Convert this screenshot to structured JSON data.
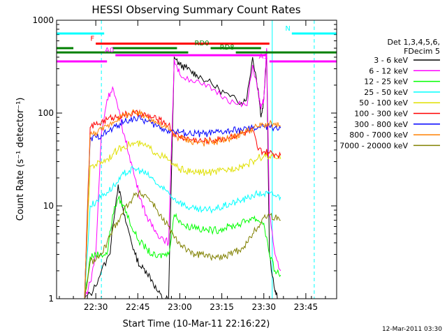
{
  "chart_data": {
    "type": "line",
    "title": "HESSI Observing Summary Count Rates",
    "xlabel": "Start Time (10-Mar-11 22:16:22)",
    "ylabel": "Count Rate (s⁻¹ detector⁻¹)",
    "y_log": true,
    "ylim": [
      1,
      1000
    ],
    "xlim_minutes": [
      0,
      100
    ],
    "x_tick_labels": [
      "22:30",
      "22:45",
      "23:00",
      "23:15",
      "23:30",
      "23:45"
    ],
    "x_tick_minutes": [
      14,
      29,
      44,
      59,
      74,
      89
    ],
    "y_tick_labels": [
      "1",
      "10",
      "100",
      "1000"
    ],
    "y_tick_values": [
      1,
      10,
      100,
      1000
    ],
    "grid": false,
    "legend": {
      "placement": "right",
      "header": [
        "Det 1,3,4,5,6,",
        "FDecim 5"
      ]
    },
    "footer_date": "12-Mar-2011 03:30",
    "flag_bars": [
      {
        "label": "N",
        "color": "#00ffff",
        "segments": [
          [
            0,
            17
          ],
          [
            84,
            100
          ]
        ],
        "level": 720
      },
      {
        "label": "F",
        "color": "#ff0000",
        "segments": [
          [
            14,
            76
          ]
        ],
        "level": 560
      },
      {
        "label": "RD0",
        "color": "#008000",
        "segments": [
          [
            0,
            6
          ],
          [
            20,
            43
          ],
          [
            55,
            73
          ]
        ],
        "level": 500
      },
      {
        "label": "RD8",
        "color": "#008000",
        "segments": [
          [
            0,
            47
          ],
          [
            64,
            100
          ]
        ],
        "level": 450
      },
      {
        "label": "A0",
        "color": "#ff00ff",
        "segments": [
          [
            21,
            75
          ]
        ],
        "level": 420
      },
      {
        "label": "A1",
        "color": "#ff00ff",
        "segments": [
          [
            0,
            18
          ],
          [
            76,
            100
          ]
        ],
        "level": 360
      }
    ],
    "vertical_markers": [
      {
        "minute": 16,
        "style": "dashed",
        "color": "#00ffff"
      },
      {
        "minute": 77,
        "style": "solid",
        "color": "#00ffff"
      },
      {
        "minute": 92,
        "style": "dashed",
        "color": "#00ffff"
      }
    ],
    "series": [
      {
        "name": "3 - 6 keV",
        "color": "#000000",
        "x": [
          10,
          13,
          16,
          19,
          20,
          22,
          24,
          26,
          28,
          30,
          32,
          34,
          36,
          38,
          40,
          42,
          44,
          46,
          48,
          50,
          54,
          58,
          62,
          66,
          68,
          70,
          72,
          73,
          74,
          75,
          76,
          78,
          79
        ],
        "y": [
          1,
          1.2,
          2,
          3,
          6,
          17,
          8,
          5,
          3,
          2.2,
          2,
          1.6,
          1.2,
          1,
          1,
          400,
          330,
          310,
          280,
          260,
          220,
          180,
          150,
          130,
          150,
          400,
          180,
          90,
          140,
          480,
          3,
          1.2,
          1
        ]
      },
      {
        "name": "6 - 12 keV",
        "color": "#ff00ff",
        "x": [
          10,
          12,
          14,
          16,
          18,
          20,
          22,
          24,
          26,
          28,
          30,
          32,
          34,
          36,
          38,
          40,
          42,
          44,
          48,
          52,
          56,
          60,
          64,
          68,
          70,
          72,
          73,
          74,
          75,
          76,
          78,
          80
        ],
        "y": [
          1,
          1.5,
          3,
          60,
          140,
          190,
          110,
          60,
          35,
          20,
          12,
          8,
          6,
          5,
          4.5,
          4,
          380,
          260,
          230,
          200,
          180,
          150,
          125,
          120,
          330,
          170,
          110,
          140,
          500,
          8,
          3,
          2
        ]
      },
      {
        "name": "12 - 25 keV",
        "color": "#00ff00",
        "x": [
          10,
          12,
          14,
          16,
          18,
          20,
          22,
          24,
          26,
          28,
          30,
          32,
          34,
          36,
          38,
          40,
          42,
          44,
          46,
          48,
          50,
          52,
          54,
          56,
          58,
          60,
          62,
          64,
          66,
          68,
          70,
          72,
          74,
          76,
          78,
          80
        ],
        "y": [
          1,
          2.8,
          3,
          3,
          3,
          8,
          12,
          10,
          7,
          5,
          4,
          3.5,
          3,
          2.8,
          3,
          3,
          8,
          7,
          6,
          6,
          6,
          5.5,
          5.5,
          5.5,
          5.5,
          5.8,
          6,
          6.2,
          6.5,
          7,
          7.5,
          7,
          6.5,
          3,
          2,
          1.8
        ]
      },
      {
        "name": "25 - 50 keV",
        "color": "#00ffff",
        "x": [
          10,
          12,
          14,
          16,
          18,
          20,
          22,
          24,
          26,
          28,
          30,
          32,
          34,
          36,
          38,
          40,
          42,
          44,
          46,
          48,
          50,
          52,
          54,
          56,
          58,
          60,
          62,
          64,
          66,
          68,
          70,
          72,
          74,
          76,
          78,
          80
        ],
        "y": [
          1,
          10,
          11,
          13,
          14,
          16,
          18,
          22,
          24,
          25,
          24,
          22,
          20,
          17,
          15,
          14,
          12,
          11,
          10,
          9.5,
          9,
          9,
          9,
          9.2,
          9.5,
          10,
          10.5,
          11,
          11.5,
          12,
          13,
          13.5,
          13.5,
          13.5,
          13,
          12.5
        ]
      },
      {
        "name": "50 - 100 keV",
        "color": "#e0e000",
        "x": [
          10,
          12,
          14,
          16,
          18,
          20,
          22,
          24,
          26,
          28,
          30,
          32,
          34,
          36,
          38,
          40,
          42,
          44,
          46,
          48,
          50,
          52,
          54,
          56,
          58,
          60,
          62,
          64,
          66,
          68,
          70,
          72,
          74,
          76,
          78,
          80
        ],
        "y": [
          1,
          27,
          28,
          30,
          32,
          36,
          40,
          44,
          46,
          47,
          46,
          44,
          40,
          37,
          34,
          31,
          27,
          25,
          24,
          23,
          23,
          23,
          23,
          23,
          23.5,
          24,
          25,
          26,
          27,
          28,
          30,
          33,
          34,
          34,
          33,
          32
        ]
      },
      {
        "name": "100 - 300 keV",
        "color": "#ff0000",
        "x": [
          10,
          12,
          14,
          16,
          18,
          20,
          22,
          24,
          26,
          28,
          30,
          32,
          34,
          36,
          38,
          40,
          42,
          44,
          46,
          48,
          50,
          52,
          54,
          56,
          58,
          60,
          62,
          64,
          66,
          68,
          70,
          72,
          74,
          76,
          78,
          80
        ],
        "y": [
          1,
          70,
          75,
          80,
          85,
          90,
          92,
          95,
          98,
          99,
          97,
          94,
          90,
          85,
          80,
          75,
          60,
          56,
          54,
          52,
          51,
          50,
          50,
          51,
          52,
          54,
          56,
          58,
          60,
          62,
          65,
          40,
          38,
          37,
          36,
          35
        ]
      },
      {
        "name": "300 - 800 keV",
        "color": "#0000ff",
        "x": [
          10,
          12,
          14,
          16,
          18,
          20,
          22,
          24,
          26,
          28,
          30,
          32,
          34,
          36,
          38,
          40,
          42,
          44,
          46,
          48,
          50,
          52,
          54,
          56,
          58,
          60,
          62,
          64,
          66,
          68,
          70,
          72,
          74,
          76,
          78,
          80
        ],
        "y": [
          1,
          52,
          55,
          58,
          62,
          68,
          74,
          80,
          85,
          88,
          86,
          82,
          77,
          72,
          68,
          65,
          63,
          62,
          61,
          60,
          60,
          60,
          60,
          61,
          62,
          63,
          64,
          65,
          66,
          67,
          68,
          70,
          72,
          71,
          70,
          69
        ]
      },
      {
        "name": "800 - 7000 keV",
        "color": "#ff8000",
        "x": [
          10,
          12,
          14,
          16,
          18,
          20,
          22,
          24,
          26,
          28,
          30,
          32,
          34,
          36,
          38,
          40,
          42,
          44,
          46,
          48,
          50,
          52,
          54,
          56,
          58,
          60,
          62,
          64,
          66,
          68,
          70,
          72,
          74,
          76,
          78,
          80
        ],
        "y": [
          1,
          58,
          62,
          66,
          72,
          80,
          88,
          94,
          98,
          100,
          97,
          92,
          86,
          78,
          72,
          67,
          58,
          54,
          52,
          50,
          49,
          48,
          48,
          49,
          50,
          52,
          54,
          56,
          60,
          64,
          68,
          72,
          75,
          76,
          74,
          72
        ]
      },
      {
        "name": "7000 - 20000 keV",
        "color": "#808000",
        "x": [
          10,
          12,
          14,
          16,
          18,
          20,
          22,
          24,
          26,
          28,
          30,
          32,
          34,
          36,
          38,
          40,
          42,
          44,
          46,
          48,
          50,
          52,
          54,
          56,
          58,
          60,
          62,
          64,
          66,
          68,
          70,
          72,
          74,
          76,
          78,
          80
        ],
        "y": [
          1,
          2.5,
          2.6,
          3,
          4,
          5.5,
          7,
          9,
          11,
          13,
          13.5,
          13,
          11,
          9,
          7,
          6,
          4.5,
          4,
          3.5,
          3,
          3,
          3,
          2.8,
          2.8,
          2.8,
          2.8,
          3,
          3.2,
          3.5,
          4,
          5,
          6,
          7.5,
          8,
          7.5,
          7
        ]
      }
    ]
  }
}
